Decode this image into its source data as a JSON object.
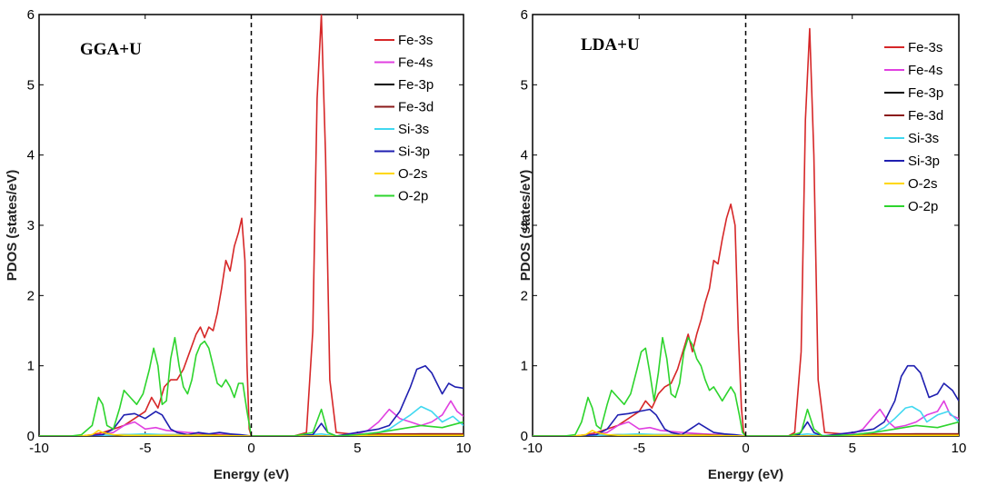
{
  "chart_data": [
    {
      "type": "line",
      "panel_label": "GGA+U",
      "xlabel": "Energy (eV)",
      "ylabel": "PDOS (states/eV)",
      "xlim": [
        -10,
        10
      ],
      "ylim": [
        0,
        6
      ],
      "xticks": [
        -10,
        -5,
        0,
        5,
        10
      ],
      "yticks": [
        0,
        1,
        2,
        3,
        4,
        5,
        6
      ],
      "fermi_level": 0,
      "legend_position": "top-right",
      "series": [
        {
          "name": "Fe-3s",
          "color": "#d62728",
          "x": [
            -10,
            -9,
            -8,
            -7.5,
            -7,
            -6.5,
            -6,
            -5.5,
            -5,
            -4.7,
            -4.4,
            -4.1,
            -3.8,
            -3.5,
            -3.2,
            -2.9,
            -2.6,
            -2.4,
            -2.2,
            -2.0,
            -1.8,
            -1.6,
            -1.4,
            -1.2,
            -1.0,
            -0.8,
            -0.6,
            -0.45,
            -0.3,
            -0.2,
            -0.1,
            0,
            0.5,
            1,
            2,
            2.6,
            2.9,
            3.1,
            3.3,
            3.5,
            3.7,
            4.0,
            5,
            6,
            7,
            8,
            9,
            10
          ],
          "y": [
            0,
            0,
            0,
            0.02,
            0.05,
            0.1,
            0.15,
            0.25,
            0.35,
            0.55,
            0.4,
            0.7,
            0.8,
            0.8,
            0.95,
            1.2,
            1.45,
            1.55,
            1.4,
            1.55,
            1.5,
            1.75,
            2.1,
            2.5,
            2.35,
            2.7,
            2.9,
            3.1,
            2.5,
            1.0,
            0.1,
            0,
            0,
            0,
            0,
            0.05,
            1.5,
            4.8,
            6.0,
            4.0,
            0.8,
            0.05,
            0.02,
            0.03,
            0.03,
            0.03,
            0.03,
            0.03
          ]
        },
        {
          "name": "Fe-4s",
          "color": "#e040e0",
          "x": [
            -10,
            -8,
            -7.2,
            -6.5,
            -6,
            -5.5,
            -5,
            -4.5,
            -4,
            -3,
            -2,
            -1,
            0,
            1,
            2,
            3,
            4,
            5,
            5.5,
            6,
            6.5,
            7,
            7.5,
            8,
            8.5,
            9,
            9.4,
            9.7,
            10
          ],
          "y": [
            0,
            0,
            0.02,
            0.05,
            0.15,
            0.2,
            0.1,
            0.12,
            0.08,
            0.05,
            0.03,
            0.02,
            0,
            0,
            0,
            0,
            0,
            0.03,
            0.08,
            0.2,
            0.38,
            0.25,
            0.2,
            0.15,
            0.2,
            0.3,
            0.5,
            0.35,
            0.28
          ]
        },
        {
          "name": "Fe-3p",
          "color": "#000000",
          "x": [
            -10,
            -8,
            -6,
            -4,
            -2,
            0,
            2,
            4,
            6,
            8,
            10
          ],
          "y": [
            0,
            0,
            0.01,
            0.01,
            0.01,
            0,
            0,
            0,
            0.01,
            0.01,
            0.01
          ]
        },
        {
          "name": "Fe-3d",
          "color": "#8b1a1a",
          "x": [
            -10,
            -8,
            -6,
            -4,
            -2,
            0,
            2,
            4,
            6,
            8,
            10
          ],
          "y": [
            0,
            0,
            0.02,
            0.02,
            0.02,
            0,
            0,
            0,
            0.02,
            0.03,
            0.03
          ]
        },
        {
          "name": "Si-3s",
          "color": "#40d8f0",
          "x": [
            -10,
            -8,
            -6,
            -5,
            -4,
            -2,
            0,
            2,
            3.3,
            4,
            5,
            6,
            6.5,
            7,
            7.5,
            8,
            8.5,
            9,
            9.5,
            10
          ],
          "y": [
            0,
            0,
            0.02,
            0.03,
            0.02,
            0.01,
            0,
            0,
            0.03,
            0,
            0.02,
            0.05,
            0.1,
            0.2,
            0.3,
            0.42,
            0.35,
            0.2,
            0.28,
            0.15
          ]
        },
        {
          "name": "Si-3p",
          "color": "#1f1fb0",
          "x": [
            -10,
            -8,
            -7,
            -6.5,
            -6,
            -5.5,
            -5,
            -4.5,
            -4.2,
            -3.8,
            -3.5,
            -3,
            -2.5,
            -2,
            -1.5,
            -1,
            -0.5,
            0,
            1,
            2,
            2.9,
            3.3,
            3.6,
            4,
            5,
            6,
            6.5,
            7,
            7.5,
            7.8,
            8.2,
            8.5,
            9,
            9.3,
            9.6,
            10
          ],
          "y": [
            0,
            0,
            0.02,
            0.1,
            0.3,
            0.32,
            0.25,
            0.35,
            0.3,
            0.1,
            0.05,
            0.02,
            0.05,
            0.03,
            0.05,
            0.03,
            0.02,
            0,
            0,
            0,
            0.02,
            0.18,
            0.05,
            0,
            0.05,
            0.1,
            0.15,
            0.35,
            0.7,
            0.95,
            1.0,
            0.9,
            0.6,
            0.75,
            0.7,
            0.68
          ]
        },
        {
          "name": "O-2s",
          "color": "#ffd700",
          "x": [
            -10,
            -8,
            -7.5,
            -7.2,
            -7,
            -6.5,
            -6,
            -4,
            -2,
            0,
            2,
            4,
            6,
            8,
            10
          ],
          "y": [
            0,
            0,
            0.02,
            0.08,
            0.05,
            0.02,
            0.01,
            0.01,
            0.01,
            0,
            0,
            0,
            0.01,
            0.01,
            0.01
          ]
        },
        {
          "name": "O-2p",
          "color": "#2dd42d",
          "x": [
            -10,
            -8.5,
            -8,
            -7.5,
            -7.2,
            -7,
            -6.8,
            -6.5,
            -6.2,
            -6,
            -5.7,
            -5.4,
            -5.1,
            -4.8,
            -4.6,
            -4.4,
            -4.2,
            -4.0,
            -3.8,
            -3.6,
            -3.4,
            -3.2,
            -3.0,
            -2.8,
            -2.6,
            -2.4,
            -2.2,
            -2.0,
            -1.8,
            -1.6,
            -1.4,
            -1.2,
            -1.0,
            -0.8,
            -0.6,
            -0.4,
            -0.2,
            0,
            1,
            2,
            2.9,
            3.3,
            3.6,
            4,
            5,
            6,
            7,
            8,
            9,
            10
          ],
          "y": [
            0,
            0,
            0.02,
            0.15,
            0.55,
            0.45,
            0.15,
            0.1,
            0.4,
            0.65,
            0.55,
            0.45,
            0.6,
            0.95,
            1.25,
            1.0,
            0.45,
            0.5,
            1.1,
            1.4,
            1.0,
            0.7,
            0.6,
            0.8,
            1.15,
            1.3,
            1.35,
            1.25,
            1.0,
            0.75,
            0.7,
            0.8,
            0.7,
            0.55,
            0.75,
            0.75,
            0.35,
            0,
            0,
            0,
            0.05,
            0.38,
            0.05,
            0,
            0.02,
            0.05,
            0.1,
            0.15,
            0.12,
            0.2
          ]
        }
      ]
    },
    {
      "type": "line",
      "panel_label": "LDA+U",
      "xlabel": "Energy (eV)",
      "ylabel": "PDOS (states/eV)",
      "xlim": [
        -10,
        10
      ],
      "ylim": [
        0,
        6
      ],
      "xticks": [
        -10,
        -5,
        0,
        5,
        10
      ],
      "yticks": [
        0,
        1,
        2,
        3,
        4,
        5,
        6
      ],
      "fermi_level": 0,
      "legend_position": "top-right",
      "series": [
        {
          "name": "Fe-3s",
          "color": "#d62728",
          "x": [
            -10,
            -9,
            -8,
            -7.5,
            -7,
            -6.5,
            -6,
            -5.5,
            -5,
            -4.7,
            -4.4,
            -4.1,
            -3.8,
            -3.5,
            -3.2,
            -2.9,
            -2.7,
            -2.5,
            -2.3,
            -2.1,
            -1.9,
            -1.7,
            -1.5,
            -1.3,
            -1.1,
            -0.9,
            -0.7,
            -0.5,
            -0.35,
            -0.2,
            -0.1,
            0,
            0.5,
            1,
            2,
            2.3,
            2.6,
            2.8,
            3.0,
            3.2,
            3.4,
            3.7,
            5,
            6,
            7,
            8,
            9,
            10
          ],
          "y": [
            0,
            0,
            0,
            0.02,
            0.05,
            0.1,
            0.15,
            0.25,
            0.35,
            0.5,
            0.4,
            0.6,
            0.7,
            0.75,
            0.95,
            1.25,
            1.45,
            1.2,
            1.45,
            1.65,
            1.9,
            2.1,
            2.5,
            2.45,
            2.8,
            3.1,
            3.3,
            3.0,
            1.5,
            0.4,
            0.05,
            0,
            0,
            0,
            0,
            0.05,
            1.2,
            4.5,
            5.8,
            4.0,
            0.8,
            0.05,
            0.02,
            0.03,
            0.03,
            0.03,
            0.03,
            0.03
          ]
        },
        {
          "name": "Fe-4s",
          "color": "#e040e0",
          "x": [
            -10,
            -8,
            -7.2,
            -6.5,
            -6,
            -5.5,
            -5,
            -4.5,
            -4,
            -3,
            -2,
            -1,
            0,
            1,
            2,
            3,
            4,
            5,
            5.5,
            6,
            6.3,
            6.7,
            7,
            7.5,
            8,
            8.5,
            9,
            9.3,
            9.6,
            10
          ],
          "y": [
            0,
            0,
            0.02,
            0.05,
            0.15,
            0.2,
            0.1,
            0.12,
            0.08,
            0.05,
            0.03,
            0.02,
            0,
            0,
            0,
            0,
            0,
            0.03,
            0.1,
            0.28,
            0.38,
            0.2,
            0.12,
            0.15,
            0.2,
            0.3,
            0.35,
            0.5,
            0.3,
            0.25
          ]
        },
        {
          "name": "Fe-3p",
          "color": "#000000",
          "x": [
            -10,
            -8,
            -6,
            -4,
            -2,
            0,
            2,
            4,
            6,
            8,
            10
          ],
          "y": [
            0,
            0,
            0.01,
            0.01,
            0.01,
            0,
            0,
            0,
            0.01,
            0.01,
            0.01
          ]
        },
        {
          "name": "Fe-3d",
          "color": "#8b1a1a",
          "x": [
            -10,
            -8,
            -6,
            -4,
            -2,
            0,
            2,
            4,
            6,
            8,
            10
          ],
          "y": [
            0,
            0,
            0.02,
            0.02,
            0.02,
            0,
            0,
            0,
            0.02,
            0.03,
            0.03
          ]
        },
        {
          "name": "Si-3s",
          "color": "#40d8f0",
          "x": [
            -10,
            -8,
            -6,
            -5,
            -4,
            -2,
            0,
            2,
            2.9,
            4,
            5,
            6,
            6.5,
            7,
            7.5,
            7.8,
            8.2,
            8.5,
            9,
            9.5,
            10
          ],
          "y": [
            0,
            0,
            0.02,
            0.03,
            0.02,
            0.01,
            0,
            0,
            0.03,
            0,
            0.02,
            0.05,
            0.12,
            0.25,
            0.4,
            0.42,
            0.35,
            0.2,
            0.3,
            0.35,
            0.2
          ]
        },
        {
          "name": "Si-3p",
          "color": "#1f1fb0",
          "x": [
            -10,
            -8,
            -7,
            -6.5,
            -6,
            -5.5,
            -5,
            -4.5,
            -4.2,
            -3.8,
            -3.5,
            -3,
            -2.6,
            -2.2,
            -1.5,
            -1,
            -0.5,
            0,
            1,
            2,
            2.5,
            2.9,
            3.2,
            3.6,
            5,
            6,
            6.5,
            7,
            7.3,
            7.6,
            7.9,
            8.2,
            8.6,
            9,
            9.3,
            9.7,
            10
          ],
          "y": [
            0,
            0,
            0.02,
            0.1,
            0.3,
            0.32,
            0.35,
            0.38,
            0.3,
            0.1,
            0.05,
            0.02,
            0.1,
            0.18,
            0.05,
            0.03,
            0.02,
            0,
            0,
            0,
            0.02,
            0.2,
            0.05,
            0,
            0.05,
            0.1,
            0.2,
            0.5,
            0.85,
            1.0,
            1.0,
            0.9,
            0.55,
            0.6,
            0.75,
            0.65,
            0.5
          ]
        },
        {
          "name": "O-2s",
          "color": "#ffd700",
          "x": [
            -10,
            -8,
            -7.5,
            -7.2,
            -7,
            -6.5,
            -6,
            -4,
            -2,
            0,
            2,
            4,
            6,
            8,
            10
          ],
          "y": [
            0,
            0,
            0.02,
            0.08,
            0.05,
            0.02,
            0.01,
            0.01,
            0.01,
            0,
            0,
            0,
            0.01,
            0.01,
            0.01
          ]
        },
        {
          "name": "O-2p",
          "color": "#2dd42d",
          "x": [
            -10,
            -8.5,
            -8,
            -7.7,
            -7.4,
            -7.2,
            -7,
            -6.8,
            -6.5,
            -6.3,
            -6.0,
            -5.7,
            -5.4,
            -5.1,
            -4.9,
            -4.7,
            -4.5,
            -4.3,
            -4.1,
            -3.9,
            -3.7,
            -3.5,
            -3.3,
            -3.1,
            -2.9,
            -2.7,
            -2.5,
            -2.3,
            -2.1,
            -1.9,
            -1.7,
            -1.5,
            -1.3,
            -1.1,
            -0.9,
            -0.7,
            -0.5,
            -0.3,
            -0.15,
            0,
            1,
            2,
            2.6,
            2.9,
            3.2,
            3.6,
            5,
            6,
            7,
            8,
            9,
            10
          ],
          "y": [
            0,
            0,
            0.02,
            0.2,
            0.55,
            0.4,
            0.15,
            0.1,
            0.45,
            0.65,
            0.55,
            0.45,
            0.6,
            0.95,
            1.2,
            1.25,
            0.9,
            0.5,
            0.9,
            1.4,
            1.1,
            0.6,
            0.55,
            0.75,
            1.2,
            1.4,
            1.3,
            1.1,
            1.0,
            0.8,
            0.65,
            0.7,
            0.6,
            0.5,
            0.6,
            0.7,
            0.6,
            0.3,
            0.05,
            0,
            0,
            0,
            0.05,
            0.38,
            0.1,
            0,
            0.02,
            0.05,
            0.1,
            0.15,
            0.12,
            0.2
          ]
        }
      ]
    }
  ]
}
